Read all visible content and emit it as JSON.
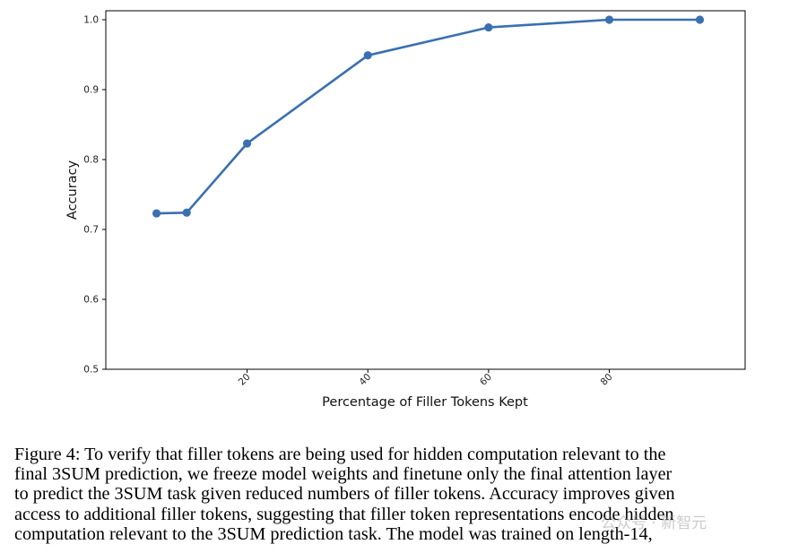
{
  "chart_data": {
    "type": "line",
    "xlabel": "Percentage of Filler Tokens Kept",
    "ylabel": "Accuracy",
    "xlim": [
      0,
      100
    ],
    "ylim": [
      0.5,
      1.0
    ],
    "xticks": [
      "20",
      "40",
      "60",
      "80"
    ],
    "yticks": [
      "0.5",
      "0.6",
      "0.7",
      "0.8",
      "0.9",
      "1.0"
    ],
    "grid": false,
    "series": [
      {
        "x": [
          5,
          10,
          20,
          40,
          60,
          80,
          95
        ],
        "y": [
          0.723,
          0.724,
          0.823,
          0.949,
          0.989,
          1.0,
          1.0
        ],
        "color": "#3a70b0",
        "marker": "circle"
      }
    ]
  },
  "caption": {
    "lines": [
      "Figure 4: To verify that filler tokens are being used for hidden computation relevant to the",
      "final 3SUM prediction, we freeze model weights and finetune only the final attention layer",
      "to predict the 3SUM task given reduced numbers of filler tokens. Accuracy improves given",
      "access to additional filler tokens, suggesting that filler token representations encode hidden",
      "computation relevant to the 3SUM prediction task. The model was trained on length-14,"
    ]
  },
  "watermark": "公众号 · 新智元"
}
